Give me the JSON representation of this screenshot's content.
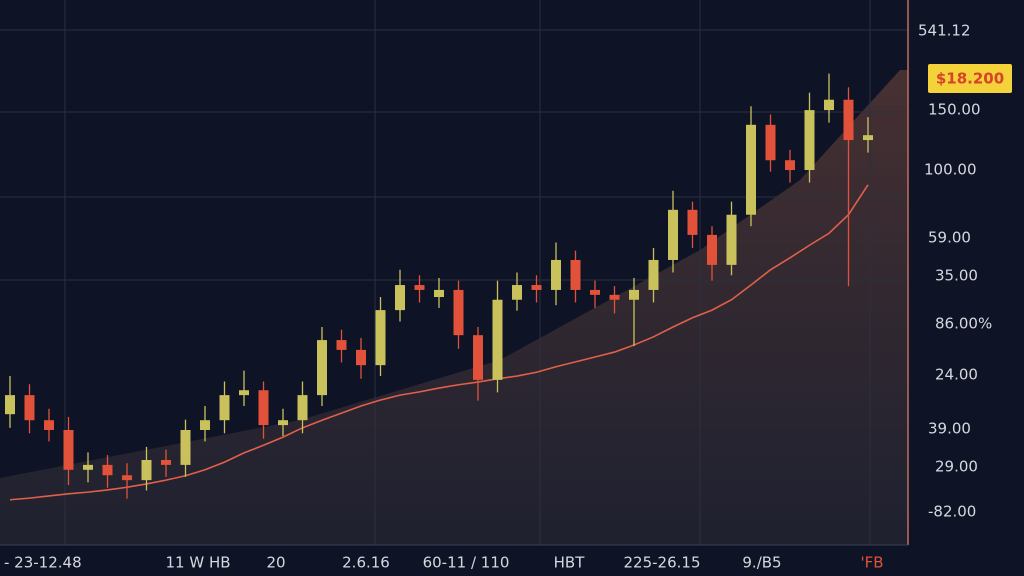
{
  "chart_data": {
    "type": "candlestick",
    "price_tag": "$18.200",
    "y_axis_labels": [
      "541.12",
      "150.00",
      "100.00",
      "59.00",
      "35.00",
      "86.00%",
      "24.00",
      "39.00",
      "29.00",
      "-82.00"
    ],
    "x_axis_labels": [
      "- 23-12.48",
      "11 W HB",
      "20",
      "2.6.16",
      "60-11 / 110",
      "HBT",
      "225-26.15",
      "9./B5",
      "'FB"
    ],
    "ylim": [
      0,
      100
    ],
    "up_color": "#c9c15c",
    "down_color": "#e2523a",
    "open": [
      24.0,
      27.5,
      22.9,
      21.1,
      13.8,
      14.7,
      12.8,
      11.9,
      15.6,
      14.7,
      21.1,
      22.9,
      27.5,
      28.4,
      22.0,
      22.9,
      27.5,
      37.6,
      35.8,
      33.0,
      43.1,
      47.7,
      45.5,
      46.8,
      38.5,
      30.3,
      45.0,
      47.7,
      46.8,
      52.3,
      46.8,
      45.9,
      45.0,
      46.8,
      52.3,
      61.5,
      56.9,
      51.4,
      60.6,
      77.1,
      70.6,
      68.8,
      79.8,
      81.7,
      74.3
    ],
    "high": [
      31.0,
      29.5,
      25.0,
      23.5,
      17.0,
      16.5,
      15.0,
      18.0,
      17.5,
      23.0,
      25.5,
      30.0,
      32.0,
      30.0,
      25.0,
      30.0,
      40.0,
      39.5,
      38.0,
      45.5,
      50.5,
      49.5,
      49.0,
      48.5,
      40.0,
      48.5,
      50.0,
      49.5,
      55.5,
      54.0,
      48.5,
      47.5,
      49.0,
      54.5,
      65.0,
      63.0,
      58.5,
      63.0,
      80.5,
      79.0,
      72.5,
      83.0,
      86.5,
      84.0,
      78.5
    ],
    "low": [
      21.5,
      20.5,
      19.0,
      11.0,
      11.5,
      10.5,
      8.5,
      10.0,
      12.5,
      12.5,
      19.0,
      20.5,
      25.5,
      19.5,
      20.0,
      20.5,
      25.5,
      33.5,
      30.5,
      31.0,
      41.0,
      44.5,
      43.5,
      36.0,
      26.5,
      28.0,
      43.0,
      44.5,
      44.0,
      44.5,
      43.5,
      42.5,
      36.5,
      44.5,
      50.0,
      54.5,
      48.5,
      49.5,
      58.5,
      68.5,
      66.5,
      66.5,
      77.5,
      47.5,
      72.0
    ],
    "close": [
      27.5,
      22.9,
      21.1,
      13.8,
      14.7,
      12.8,
      11.9,
      15.6,
      14.7,
      21.1,
      22.9,
      27.5,
      28.4,
      22.0,
      22.9,
      27.5,
      37.6,
      35.8,
      33.0,
      43.1,
      47.7,
      46.8,
      46.8,
      38.5,
      30.3,
      45.0,
      47.7,
      46.8,
      52.3,
      46.8,
      45.9,
      45.0,
      46.8,
      52.3,
      61.5,
      56.9,
      51.4,
      60.6,
      77.1,
      70.6,
      68.8,
      79.8,
      81.7,
      74.3,
      75.2
    ],
    "moving_average": {
      "color": "#e0604a",
      "values": [
        8.3,
        8.6,
        9.0,
        9.4,
        9.7,
        10.1,
        10.6,
        11.2,
        11.9,
        12.7,
        13.8,
        15.2,
        16.9,
        18.3,
        19.8,
        21.5,
        22.9,
        24.2,
        25.5,
        26.6,
        27.5,
        28.1,
        28.8,
        29.4,
        29.9,
        30.5,
        31.0,
        31.7,
        32.7,
        33.6,
        34.5,
        35.4,
        36.7,
        38.2,
        40.0,
        41.7,
        43.1,
        45.0,
        47.7,
        50.5,
        52.7,
        55.0,
        57.2,
        60.6,
        66.1
      ]
    }
  }
}
